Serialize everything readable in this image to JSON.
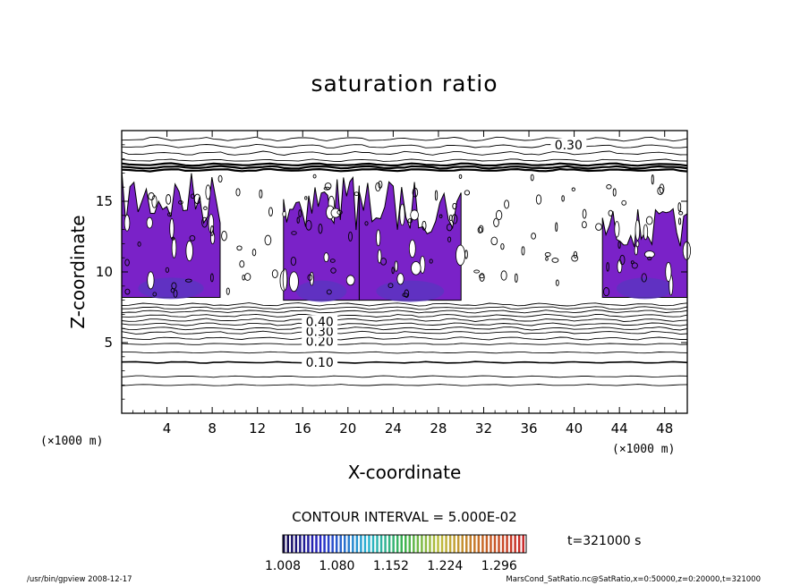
{
  "chart_data": {
    "type": "heatmap",
    "title": "saturation ratio",
    "xlabel": "X-coordinate",
    "ylabel": "Z-coordinate",
    "x_unit": "(×1000 m)",
    "y_unit": "(×1000 m)",
    "xlim": [
      0,
      50
    ],
    "ylim": [
      0,
      20
    ],
    "x_ticks": [
      4,
      8,
      12,
      16,
      20,
      24,
      28,
      32,
      36,
      40,
      44,
      48
    ],
    "y_ticks": [
      5,
      10,
      15
    ],
    "contour_interval": "CONTOUR INTERVAL = 5.000E-02",
    "contour_labels": [
      {
        "text": "0.10",
        "x": 17.5,
        "y": 3.6
      },
      {
        "text": "0.20",
        "x": 17.5,
        "y": 5.1
      },
      {
        "text": "0.30",
        "x": 17.5,
        "y": 5.8
      },
      {
        "text": "0.40",
        "x": 17.5,
        "y": 6.5
      },
      {
        "text": "0.30",
        "x": 39.5,
        "y": 19.0
      }
    ],
    "shaded_regions": [
      {
        "x": [
          0,
          8.7
        ],
        "z": [
          8.2,
          17.2
        ]
      },
      {
        "x": [
          14.3,
          21
        ],
        "z": [
          8.0,
          17.0
        ]
      },
      {
        "x": [
          21,
          30
        ],
        "z": [
          8.0,
          16.5
        ]
      },
      {
        "x": [
          42.5,
          50
        ],
        "z": [
          8.2,
          14.5
        ]
      }
    ],
    "colorbar": {
      "ticks": [
        "1.008",
        "1.080",
        "1.152",
        "1.224",
        "1.296"
      ],
      "range": [
        1.008,
        1.332
      ]
    },
    "time_label": "t=321000 s"
  },
  "footer": {
    "left": "/usr/bin/gpview   2008-12-17",
    "right": "MarsCond_SatRatio.nc@SatRatio,x=0:50000,z=0:20000,t=321000"
  }
}
